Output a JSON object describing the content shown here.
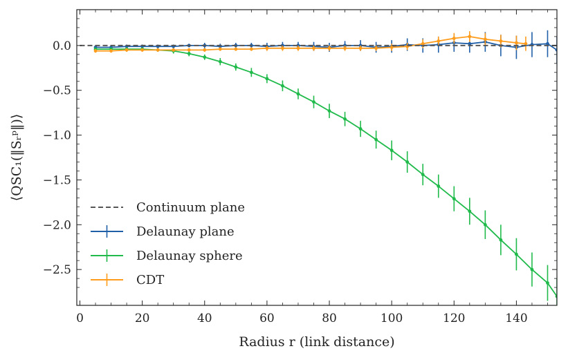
{
  "chart_data": {
    "type": "line",
    "title": "",
    "xlabel": "Radius r (link distance)",
    "ylabel": "⟨QSC₁(‖Sᵣᵖ‖)⟩",
    "xlim": [
      -1,
      153
    ],
    "ylim": [
      -2.9,
      0.4
    ],
    "x_ticks": [
      0,
      20,
      40,
      60,
      80,
      100,
      120,
      140
    ],
    "y_ticks": [
      0.0,
      -0.5,
      -1.0,
      -1.5,
      -2.0,
      -2.5
    ],
    "x_tick_labels": [
      "0",
      "20",
      "40",
      "60",
      "80",
      "100",
      "120",
      "140"
    ],
    "y_tick_labels": [
      "0.0",
      "−0.5",
      "−1.0",
      "−1.5",
      "−2.0",
      "−2.5"
    ],
    "grid": false,
    "legend_position": "lower-left",
    "series": [
      {
        "name": "Continuum plane",
        "color": "#555555",
        "style": "dashed",
        "x": [
          0,
          153
        ],
        "y": [
          0.0,
          0.0
        ]
      },
      {
        "name": "Delaunay plane",
        "color": "#1f5fa8",
        "style": "errorbar",
        "x": [
          5,
          10,
          15,
          20,
          25,
          30,
          35,
          40,
          45,
          50,
          55,
          60,
          65,
          70,
          75,
          80,
          85,
          90,
          95,
          100,
          105,
          110,
          115,
          120,
          125,
          130,
          135,
          140,
          145,
          150,
          153
        ],
        "y": [
          -0.02,
          -0.02,
          -0.01,
          -0.01,
          -0.01,
          -0.01,
          0.0,
          0.0,
          -0.01,
          0.0,
          0.0,
          -0.01,
          0.0,
          0.0,
          -0.01,
          -0.02,
          0.0,
          0.0,
          -0.02,
          -0.01,
          0.01,
          0.0,
          0.01,
          0.03,
          0.02,
          0.04,
          0.0,
          -0.02,
          0.01,
          0.02,
          -0.05
        ],
        "err": [
          0.02,
          0.02,
          0.02,
          0.02,
          0.02,
          0.02,
          0.02,
          0.03,
          0.03,
          0.03,
          0.03,
          0.04,
          0.04,
          0.04,
          0.05,
          0.05,
          0.05,
          0.06,
          0.06,
          0.07,
          0.07,
          0.08,
          0.09,
          0.1,
          0.1,
          0.11,
          0.12,
          0.13,
          0.14,
          0.15,
          0.15
        ]
      },
      {
        "name": "Delaunay sphere",
        "color": "#1fba4a",
        "style": "errorbar",
        "x": [
          5,
          10,
          15,
          20,
          25,
          30,
          35,
          40,
          45,
          50,
          55,
          60,
          65,
          70,
          75,
          80,
          85,
          90,
          95,
          100,
          105,
          110,
          115,
          120,
          125,
          130,
          135,
          140,
          145,
          150,
          153
        ],
        "y": [
          -0.04,
          -0.04,
          -0.04,
          -0.04,
          -0.05,
          -0.06,
          -0.09,
          -0.13,
          -0.18,
          -0.24,
          -0.3,
          -0.37,
          -0.45,
          -0.54,
          -0.63,
          -0.73,
          -0.82,
          -0.93,
          -1.05,
          -1.17,
          -1.3,
          -1.44,
          -1.57,
          -1.71,
          -1.85,
          -2.0,
          -2.17,
          -2.33,
          -2.5,
          -2.65,
          -2.8
        ],
        "err": [
          0.02,
          0.02,
          0.02,
          0.02,
          0.02,
          0.03,
          0.03,
          0.03,
          0.04,
          0.04,
          0.05,
          0.05,
          0.06,
          0.06,
          0.07,
          0.08,
          0.08,
          0.09,
          0.1,
          0.11,
          0.12,
          0.12,
          0.13,
          0.14,
          0.15,
          0.16,
          0.17,
          0.18,
          0.19,
          0.2,
          0.2
        ]
      },
      {
        "name": "CDT",
        "color": "#ff9c1b",
        "style": "errorbar",
        "x": [
          5,
          10,
          15,
          20,
          25,
          30,
          35,
          40,
          45,
          50,
          55,
          60,
          65,
          70,
          75,
          80,
          85,
          90,
          95,
          100,
          105,
          110,
          115,
          120,
          125,
          130,
          135,
          140,
          143
        ],
        "y": [
          -0.06,
          -0.06,
          -0.05,
          -0.05,
          -0.05,
          -0.05,
          -0.05,
          -0.05,
          -0.04,
          -0.04,
          -0.04,
          -0.03,
          -0.03,
          -0.03,
          -0.03,
          -0.03,
          -0.03,
          -0.03,
          -0.03,
          -0.02,
          -0.01,
          0.02,
          0.05,
          0.08,
          0.1,
          0.07,
          0.05,
          0.03,
          0.02
        ],
        "err": [
          0.02,
          0.02,
          0.02,
          0.02,
          0.02,
          0.02,
          0.02,
          0.02,
          0.02,
          0.02,
          0.02,
          0.03,
          0.03,
          0.03,
          0.03,
          0.03,
          0.03,
          0.03,
          0.03,
          0.04,
          0.04,
          0.05,
          0.05,
          0.06,
          0.06,
          0.07,
          0.07,
          0.08,
          0.08
        ]
      }
    ]
  }
}
